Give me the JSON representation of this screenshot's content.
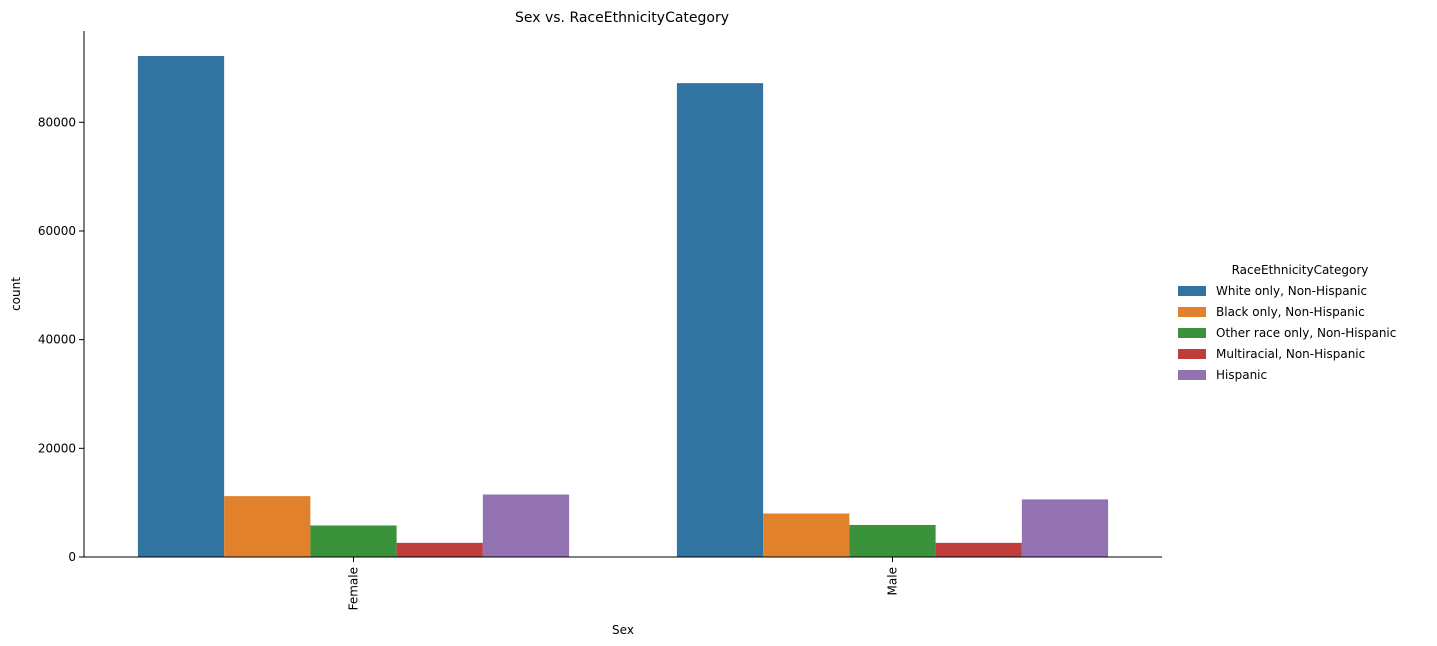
{
  "chart_data": {
    "type": "bar",
    "title": "Sex vs. RaceEthnicityCategory",
    "xlabel": "Sex",
    "ylabel": "count",
    "categories": [
      "Female",
      "Male"
    ],
    "ylim": [
      0,
      96800
    ],
    "yticks": [
      0,
      20000,
      40000,
      60000,
      80000
    ],
    "ytick_labels": [
      "0",
      "20000",
      "40000",
      "60000",
      "80000"
    ],
    "grid": false,
    "legend": {
      "title": "RaceEthnicityCategory",
      "position": "right-center"
    },
    "series": [
      {
        "name": "White only, Non-Hispanic",
        "color": "#3274a1",
        "values": [
          92200,
          87200
        ]
      },
      {
        "name": "Black only, Non-Hispanic",
        "color": "#e1812c",
        "values": [
          11200,
          8000
        ]
      },
      {
        "name": "Other race only, Non-Hispanic",
        "color": "#3a923a",
        "values": [
          5800,
          5900
        ]
      },
      {
        "name": "Multiracial, Non-Hispanic",
        "color": "#c03d3e",
        "values": [
          2600,
          2600
        ]
      },
      {
        "name": "Hispanic",
        "color": "#9372b2",
        "values": [
          11500,
          10600
        ]
      }
    ]
  }
}
